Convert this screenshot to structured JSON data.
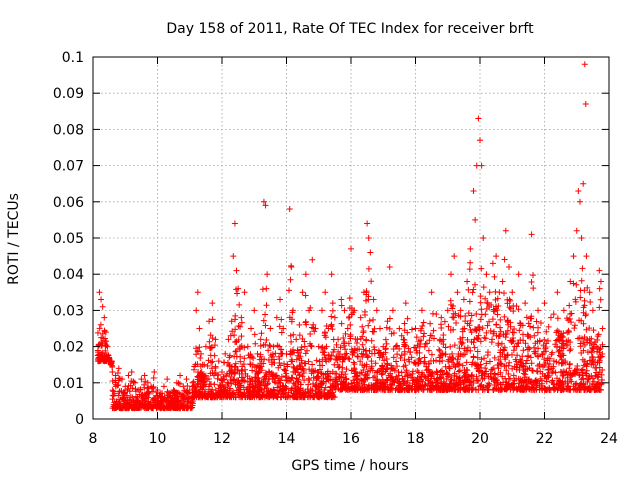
{
  "chart_data": {
    "type": "scatter",
    "title": "Day 158 of 2011, Rate Of TEC Index for receiver brft",
    "xlabel": "GPS time / hours",
    "ylabel": "ROTI / TECUs",
    "xlim": [
      8,
      24
    ],
    "ylim": [
      0,
      0.1
    ],
    "grid": true,
    "marker": "+",
    "xticks": [
      {
        "value": 8,
        "label": "8"
      },
      {
        "value": 10,
        "label": "10"
      },
      {
        "value": 12,
        "label": "12"
      },
      {
        "value": 14,
        "label": "14"
      },
      {
        "value": 16,
        "label": "16"
      },
      {
        "value": 18,
        "label": "18"
      },
      {
        "value": 20,
        "label": "20"
      },
      {
        "value": 22,
        "label": "22"
      },
      {
        "value": 24,
        "label": "24"
      }
    ],
    "yticks": [
      {
        "value": 0,
        "label": "0"
      },
      {
        "value": 0.01,
        "label": "0.01"
      },
      {
        "value": 0.02,
        "label": "0.02"
      },
      {
        "value": 0.03,
        "label": "0.03"
      },
      {
        "value": 0.04,
        "label": "0.04"
      },
      {
        "value": 0.05,
        "label": "0.05"
      },
      {
        "value": 0.06,
        "label": "0.06"
      },
      {
        "value": 0.07,
        "label": "0.07"
      },
      {
        "value": 0.08,
        "label": "0.08"
      },
      {
        "value": 0.09,
        "label": "0.09"
      },
      {
        "value": 0.1,
        "label": "0.1"
      }
    ],
    "series": [
      {
        "name": "ROTI",
        "color": "#ff0000",
        "points": [
          [
            8.2,
            0.035
          ],
          [
            8.25,
            0.033
          ],
          [
            8.3,
            0.031
          ],
          [
            8.35,
            0.028
          ],
          [
            8.4,
            0.024
          ],
          [
            8.45,
            0.02
          ],
          [
            8.5,
            0.017
          ],
          [
            8.55,
            0.015
          ],
          [
            8.6,
            0.013
          ],
          [
            8.7,
            0.012
          ],
          [
            8.8,
            0.014
          ],
          [
            8.9,
            0.011
          ],
          [
            9.0,
            0.009
          ],
          [
            9.1,
            0.012
          ],
          [
            9.2,
            0.013
          ],
          [
            9.3,
            0.01
          ],
          [
            9.4,
            0.008
          ],
          [
            9.5,
            0.011
          ],
          [
            9.6,
            0.012
          ],
          [
            9.7,
            0.01
          ],
          [
            9.8,
            0.009
          ],
          [
            9.9,
            0.013
          ],
          [
            10.0,
            0.008
          ],
          [
            10.1,
            0.007
          ],
          [
            10.2,
            0.009
          ],
          [
            10.3,
            0.011
          ],
          [
            10.4,
            0.007
          ],
          [
            10.5,
            0.008
          ],
          [
            10.6,
            0.01
          ],
          [
            10.7,
            0.012
          ],
          [
            10.8,
            0.009
          ],
          [
            10.9,
            0.011
          ],
          [
            11.0,
            0.008
          ],
          [
            11.1,
            0.01
          ],
          [
            11.2,
            0.03
          ],
          [
            11.25,
            0.035
          ],
          [
            11.3,
            0.025
          ],
          [
            11.35,
            0.018
          ],
          [
            11.4,
            0.015
          ],
          [
            11.5,
            0.02
          ],
          [
            11.6,
            0.027
          ],
          [
            11.7,
            0.032
          ],
          [
            11.8,
            0.022
          ],
          [
            11.9,
            0.016
          ],
          [
            12.0,
            0.013
          ],
          [
            12.1,
            0.018
          ],
          [
            12.2,
            0.022
          ],
          [
            12.3,
            0.027
          ],
          [
            12.35,
            0.045
          ],
          [
            12.4,
            0.054
          ],
          [
            12.45,
            0.041
          ],
          [
            12.5,
            0.036
          ],
          [
            12.6,
            0.028
          ],
          [
            12.7,
            0.035
          ],
          [
            12.8,
            0.02
          ],
          [
            12.9,
            0.025
          ],
          [
            13.0,
            0.03
          ],
          [
            13.1,
            0.018
          ],
          [
            13.2,
            0.022
          ],
          [
            13.3,
            0.06
          ],
          [
            13.35,
            0.059
          ],
          [
            13.4,
            0.04
          ],
          [
            13.5,
            0.025
          ],
          [
            13.6,
            0.02
          ],
          [
            13.7,
            0.028
          ],
          [
            13.8,
            0.033
          ],
          [
            13.9,
            0.025
          ],
          [
            14.0,
            0.018
          ],
          [
            14.1,
            0.058
          ],
          [
            14.15,
            0.042
          ],
          [
            14.2,
            0.03
          ],
          [
            14.3,
            0.022
          ],
          [
            14.4,
            0.026
          ],
          [
            14.5,
            0.035
          ],
          [
            14.6,
            0.04
          ],
          [
            14.7,
            0.03
          ],
          [
            14.8,
            0.044
          ],
          [
            14.9,
            0.025
          ],
          [
            15.0,
            0.02
          ],
          [
            15.1,
            0.03
          ],
          [
            15.2,
            0.035
          ],
          [
            15.3,
            0.025
          ],
          [
            15.4,
            0.04
          ],
          [
            15.5,
            0.028
          ],
          [
            15.6,
            0.022
          ],
          [
            15.7,
            0.033
          ],
          [
            15.8,
            0.03
          ],
          [
            15.9,
            0.025
          ],
          [
            16.0,
            0.047
          ],
          [
            16.1,
            0.03
          ],
          [
            16.2,
            0.022
          ],
          [
            16.3,
            0.028
          ],
          [
            16.4,
            0.035
          ],
          [
            16.5,
            0.054
          ],
          [
            16.55,
            0.05
          ],
          [
            16.6,
            0.046
          ],
          [
            16.7,
            0.033
          ],
          [
            16.8,
            0.03
          ],
          [
            16.9,
            0.025
          ],
          [
            17.0,
            0.02
          ],
          [
            17.2,
            0.042
          ],
          [
            17.3,
            0.03
          ],
          [
            17.5,
            0.025
          ],
          [
            17.7,
            0.032
          ],
          [
            18.0,
            0.025
          ],
          [
            18.2,
            0.03
          ],
          [
            18.5,
            0.035
          ],
          [
            18.8,
            0.028
          ],
          [
            19.0,
            0.03
          ],
          [
            19.1,
            0.04
          ],
          [
            19.2,
            0.045
          ],
          [
            19.3,
            0.035
          ],
          [
            19.4,
            0.03
          ],
          [
            19.5,
            0.033
          ],
          [
            19.6,
            0.038
          ],
          [
            19.7,
            0.047
          ],
          [
            19.8,
            0.063
          ],
          [
            19.85,
            0.055
          ],
          [
            19.9,
            0.07
          ],
          [
            19.95,
            0.083
          ],
          [
            20.0,
            0.077
          ],
          [
            20.05,
            0.07
          ],
          [
            20.1,
            0.05
          ],
          [
            20.2,
            0.04
          ],
          [
            20.3,
            0.035
          ],
          [
            20.4,
            0.043
          ],
          [
            20.5,
            0.045
          ],
          [
            20.6,
            0.035
          ],
          [
            20.7,
            0.038
          ],
          [
            20.8,
            0.052
          ],
          [
            20.9,
            0.042
          ],
          [
            21.0,
            0.035
          ],
          [
            21.2,
            0.04
          ],
          [
            21.4,
            0.032
          ],
          [
            21.6,
            0.051
          ],
          [
            21.8,
            0.03
          ],
          [
            22.0,
            0.032
          ],
          [
            22.2,
            0.028
          ],
          [
            22.4,
            0.035
          ],
          [
            22.6,
            0.03
          ],
          [
            22.8,
            0.038
          ],
          [
            22.9,
            0.045
          ],
          [
            23.0,
            0.052
          ],
          [
            23.05,
            0.063
          ],
          [
            23.1,
            0.06
          ],
          [
            23.15,
            0.05
          ],
          [
            23.2,
            0.065
          ],
          [
            23.25,
            0.098
          ],
          [
            23.28,
            0.087
          ],
          [
            23.3,
            0.045
          ],
          [
            23.4,
            0.035
          ],
          [
            23.5,
            0.03
          ],
          [
            23.6,
            0.02
          ],
          [
            23.7,
            0.041
          ],
          [
            23.75,
            0.038
          ],
          [
            23.8,
            0.025
          ]
        ]
      }
    ]
  }
}
